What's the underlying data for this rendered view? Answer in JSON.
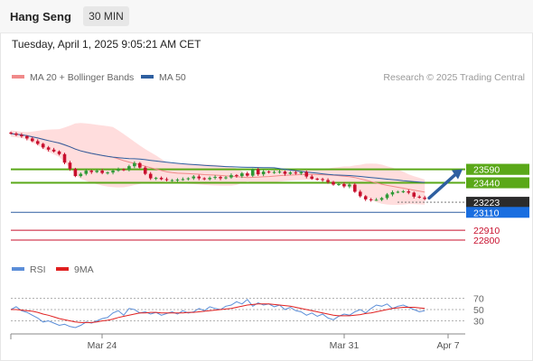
{
  "header": {
    "title": "Hang Seng",
    "interval": "30 MIN"
  },
  "datetime": "Tuesday, April 1, 2025 9:05:21 AM CET",
  "legend": {
    "items": [
      {
        "label": "MA 20 + Bollinger Bands",
        "color": "#f08a8a"
      },
      {
        "label": "MA 50",
        "color": "#2e5fa0"
      }
    ],
    "credit": "Research © 2025 Trading Central"
  },
  "rsi_legend": {
    "items": [
      {
        "label": "RSI",
        "color": "#5b8ed8"
      },
      {
        "label": "9MA",
        "color": "#e02020"
      }
    ]
  },
  "colors": {
    "up": "#2e9a36",
    "down": "#c8102e",
    "support": "#2e5fa0",
    "resistance": "#5aa818",
    "band": "#ffd9d9"
  },
  "chart_data": [
    {
      "type": "candlestick",
      "title": "Hang Seng",
      "ylim": [
        22740,
        24050
      ],
      "x_labels": [
        "Mar 24",
        "Mar 31",
        "Apr 7"
      ],
      "price_close": [
        23990,
        23975,
        23960,
        23935,
        23905,
        23875,
        23835,
        23810,
        23790,
        23760,
        23665,
        23595,
        23515,
        23540,
        23575,
        23560,
        23575,
        23550,
        23555,
        23575,
        23590,
        23585,
        23625,
        23660,
        23610,
        23540,
        23490,
        23495,
        23480,
        23470,
        23470,
        23475,
        23480,
        23490,
        23510,
        23490,
        23480,
        23495,
        23505,
        23490,
        23500,
        23525,
        23515,
        23545,
        23520,
        23590,
        23535,
        23565,
        23555,
        23560,
        23565,
        23540,
        23555,
        23545,
        23560,
        23510,
        23485,
        23480,
        23470,
        23450,
        23420,
        23425,
        23400,
        23420,
        23340,
        23290,
        23255,
        23250,
        23250,
        23270,
        23310,
        23335,
        23340,
        23345,
        23330,
        23285,
        23275,
        23260
      ],
      "horizontal_levels": [
        {
          "label": "23590",
          "value": 23590,
          "style": "resistance"
        },
        {
          "label": "23440",
          "value": 23440,
          "style": "resistance"
        },
        {
          "label": "23223",
          "value": 23223,
          "style": "current"
        },
        {
          "label": "23110",
          "value": 23110,
          "style": "support"
        },
        {
          "label": "22910",
          "value": 22910,
          "style": "red-line"
        },
        {
          "label": "22800",
          "value": 22800,
          "style": "red-line"
        }
      ],
      "forecast_arrow": {
        "from": 23270,
        "to": 23590
      }
    },
    {
      "type": "line",
      "title": "RSI",
      "ylim": [
        10,
        90
      ],
      "y_ticks": [
        70,
        50,
        30
      ],
      "series": [
        {
          "name": "RSI",
          "values": [
            50,
            55,
            48,
            45,
            40,
            35,
            28,
            30,
            26,
            22,
            24,
            20,
            18,
            22,
            28,
            26,
            30,
            34,
            36,
            44,
            48,
            40,
            52,
            50,
            44,
            46,
            42,
            45,
            40,
            43,
            46,
            42,
            48,
            44,
            46,
            52,
            48,
            55,
            52,
            50,
            56,
            58,
            64,
            60,
            68,
            56,
            62,
            58,
            60,
            55,
            58,
            50,
            54,
            48,
            46,
            40,
            44,
            38,
            42,
            35,
            32,
            38,
            42,
            40,
            46,
            50,
            44,
            52,
            58,
            56,
            60,
            52,
            56,
            58,
            54,
            50,
            46,
            48
          ]
        },
        {
          "name": "9MA",
          "values": [
            50,
            50,
            49,
            48,
            47,
            45,
            42,
            40,
            37,
            34,
            32,
            30,
            28,
            27,
            27,
            27,
            28,
            30,
            31,
            33,
            36,
            38,
            40,
            42,
            44,
            44,
            45,
            45,
            44,
            44,
            44,
            44,
            44,
            45,
            45,
            46,
            47,
            48,
            49,
            50,
            51,
            52,
            54,
            56,
            58,
            59,
            60,
            60,
            60,
            59,
            58,
            57,
            56,
            54,
            52,
            50,
            48,
            46,
            44,
            42,
            40,
            39,
            39,
            39,
            40,
            41,
            43,
            44,
            46,
            48,
            50,
            52,
            53,
            54,
            54,
            54,
            53,
            52
          ]
        }
      ]
    }
  ]
}
